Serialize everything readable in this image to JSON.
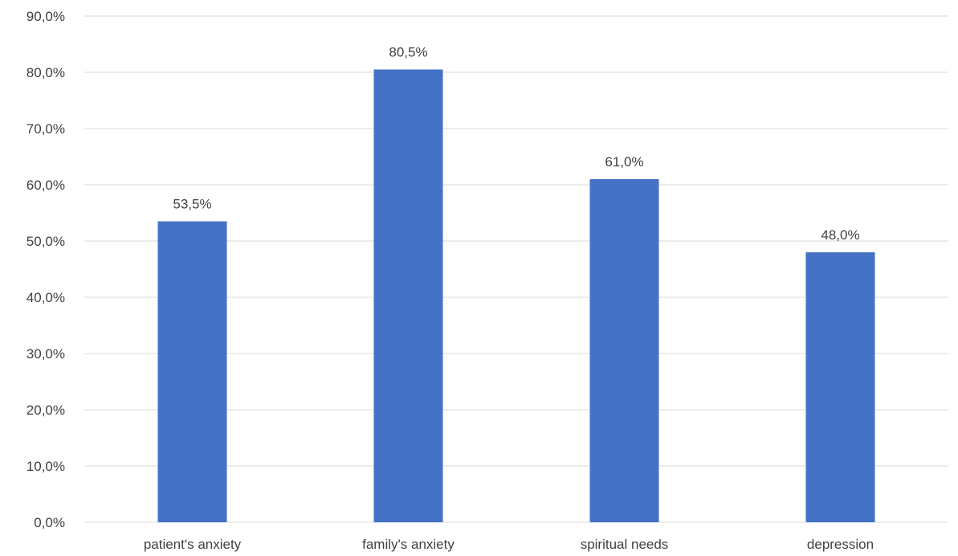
{
  "chart_data": {
    "type": "bar",
    "categories": [
      "patient's anxiety",
      "family's anxiety",
      "spiritual needs",
      "depression"
    ],
    "values": [
      53.5,
      80.5,
      61.0,
      48.0
    ],
    "value_labels": [
      "53,5%",
      "80,5%",
      "61,0%",
      "48,0%"
    ],
    "y_ticks": [
      0,
      10,
      20,
      30,
      40,
      50,
      60,
      70,
      80,
      90
    ],
    "y_tick_labels": [
      "0,0%",
      "10,0%",
      "20,0%",
      "30,0%",
      "40,0%",
      "50,0%",
      "60,0%",
      "70,0%",
      "80,0%",
      "90,0%"
    ],
    "ylim": [
      0,
      90
    ],
    "title": "",
    "xlabel": "",
    "ylabel": "",
    "grid": true,
    "legend": "none",
    "bar_color": "#4472c4"
  }
}
